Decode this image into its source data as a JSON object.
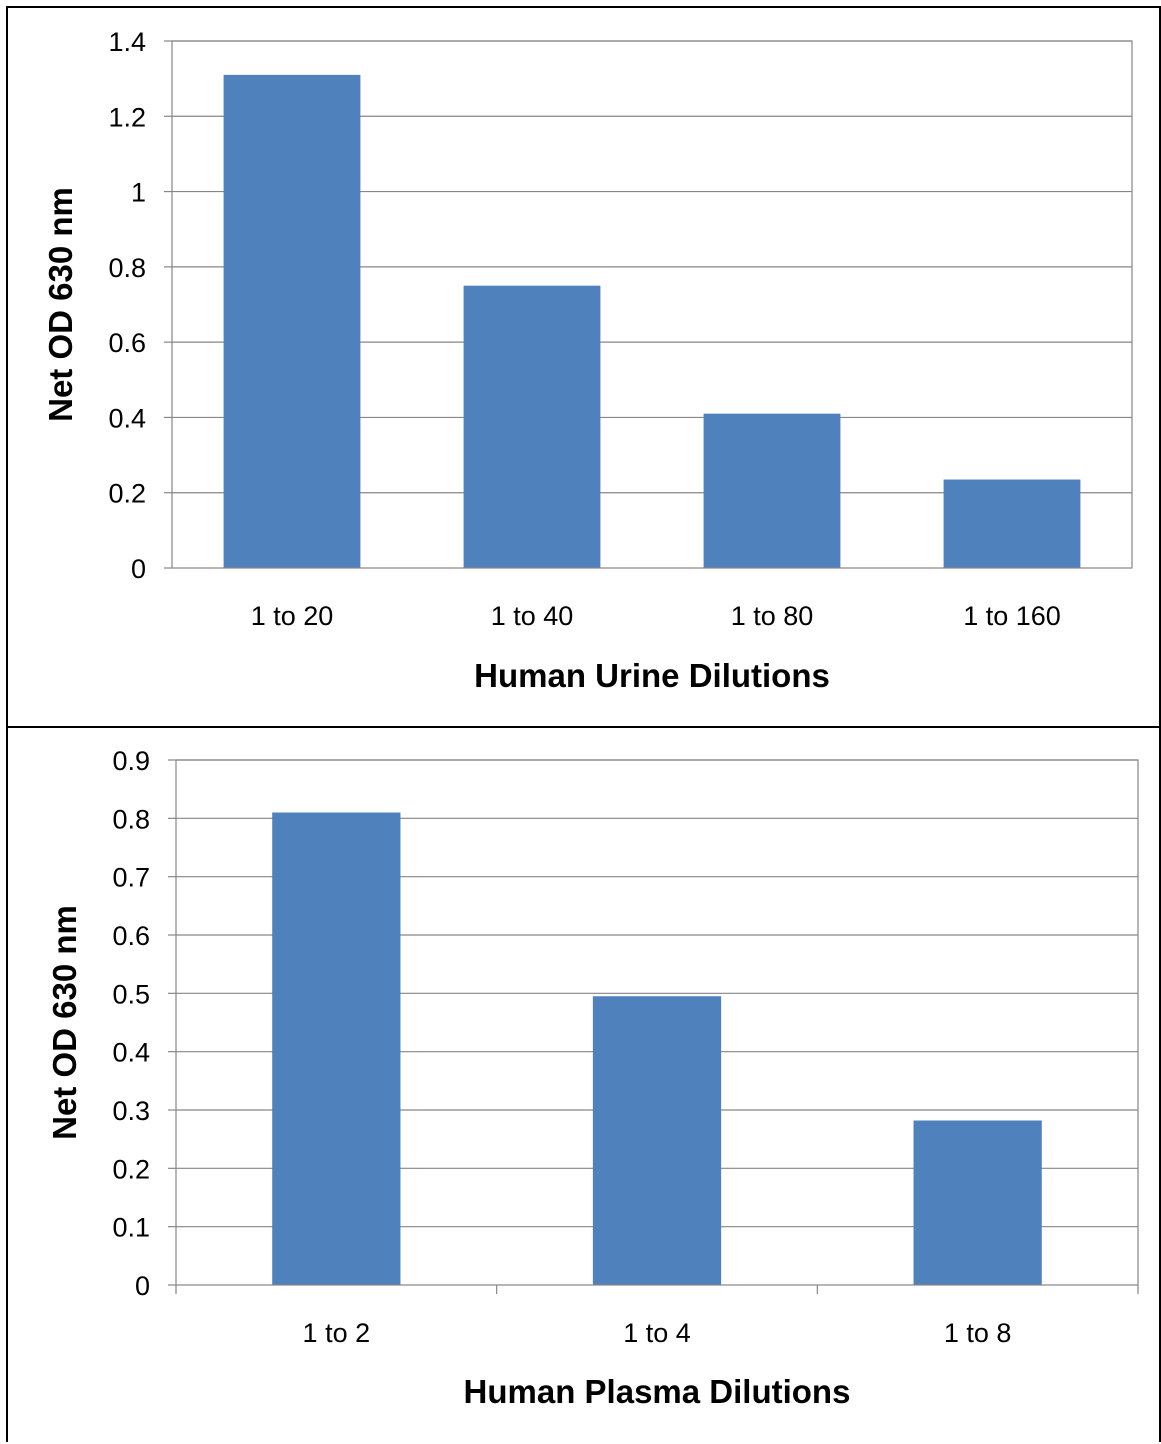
{
  "chart_data": [
    {
      "type": "bar",
      "categories": [
        "1 to 20",
        "1 to 40",
        "1 to 80",
        "1 to 160"
      ],
      "values": [
        1.31,
        0.75,
        0.41,
        0.235
      ],
      "title": "",
      "xlabel": "Human Urine Dilutions",
      "ylabel": "Net OD 630 nm",
      "ylim": [
        0,
        1.4
      ],
      "yticks": [
        "0",
        "0.2",
        "0.4",
        "0.6",
        "0.8",
        "1",
        "1.2",
        "1.4"
      ],
      "grid": true,
      "bar_color": "#4f81bd"
    },
    {
      "type": "bar",
      "categories": [
        "1 to 2",
        "1 to 4",
        "1 to 8"
      ],
      "values": [
        0.81,
        0.495,
        0.282
      ],
      "title": "",
      "xlabel": "Human Plasma Dilutions",
      "ylabel": "Net OD 630 nm",
      "ylim": [
        0,
        0.9
      ],
      "yticks": [
        "0",
        "0.1",
        "0.2",
        "0.3",
        "0.4",
        "0.5",
        "0.6",
        "0.7",
        "0.8",
        "0.9"
      ],
      "grid": true,
      "bar_color": "#4f81bd"
    }
  ]
}
